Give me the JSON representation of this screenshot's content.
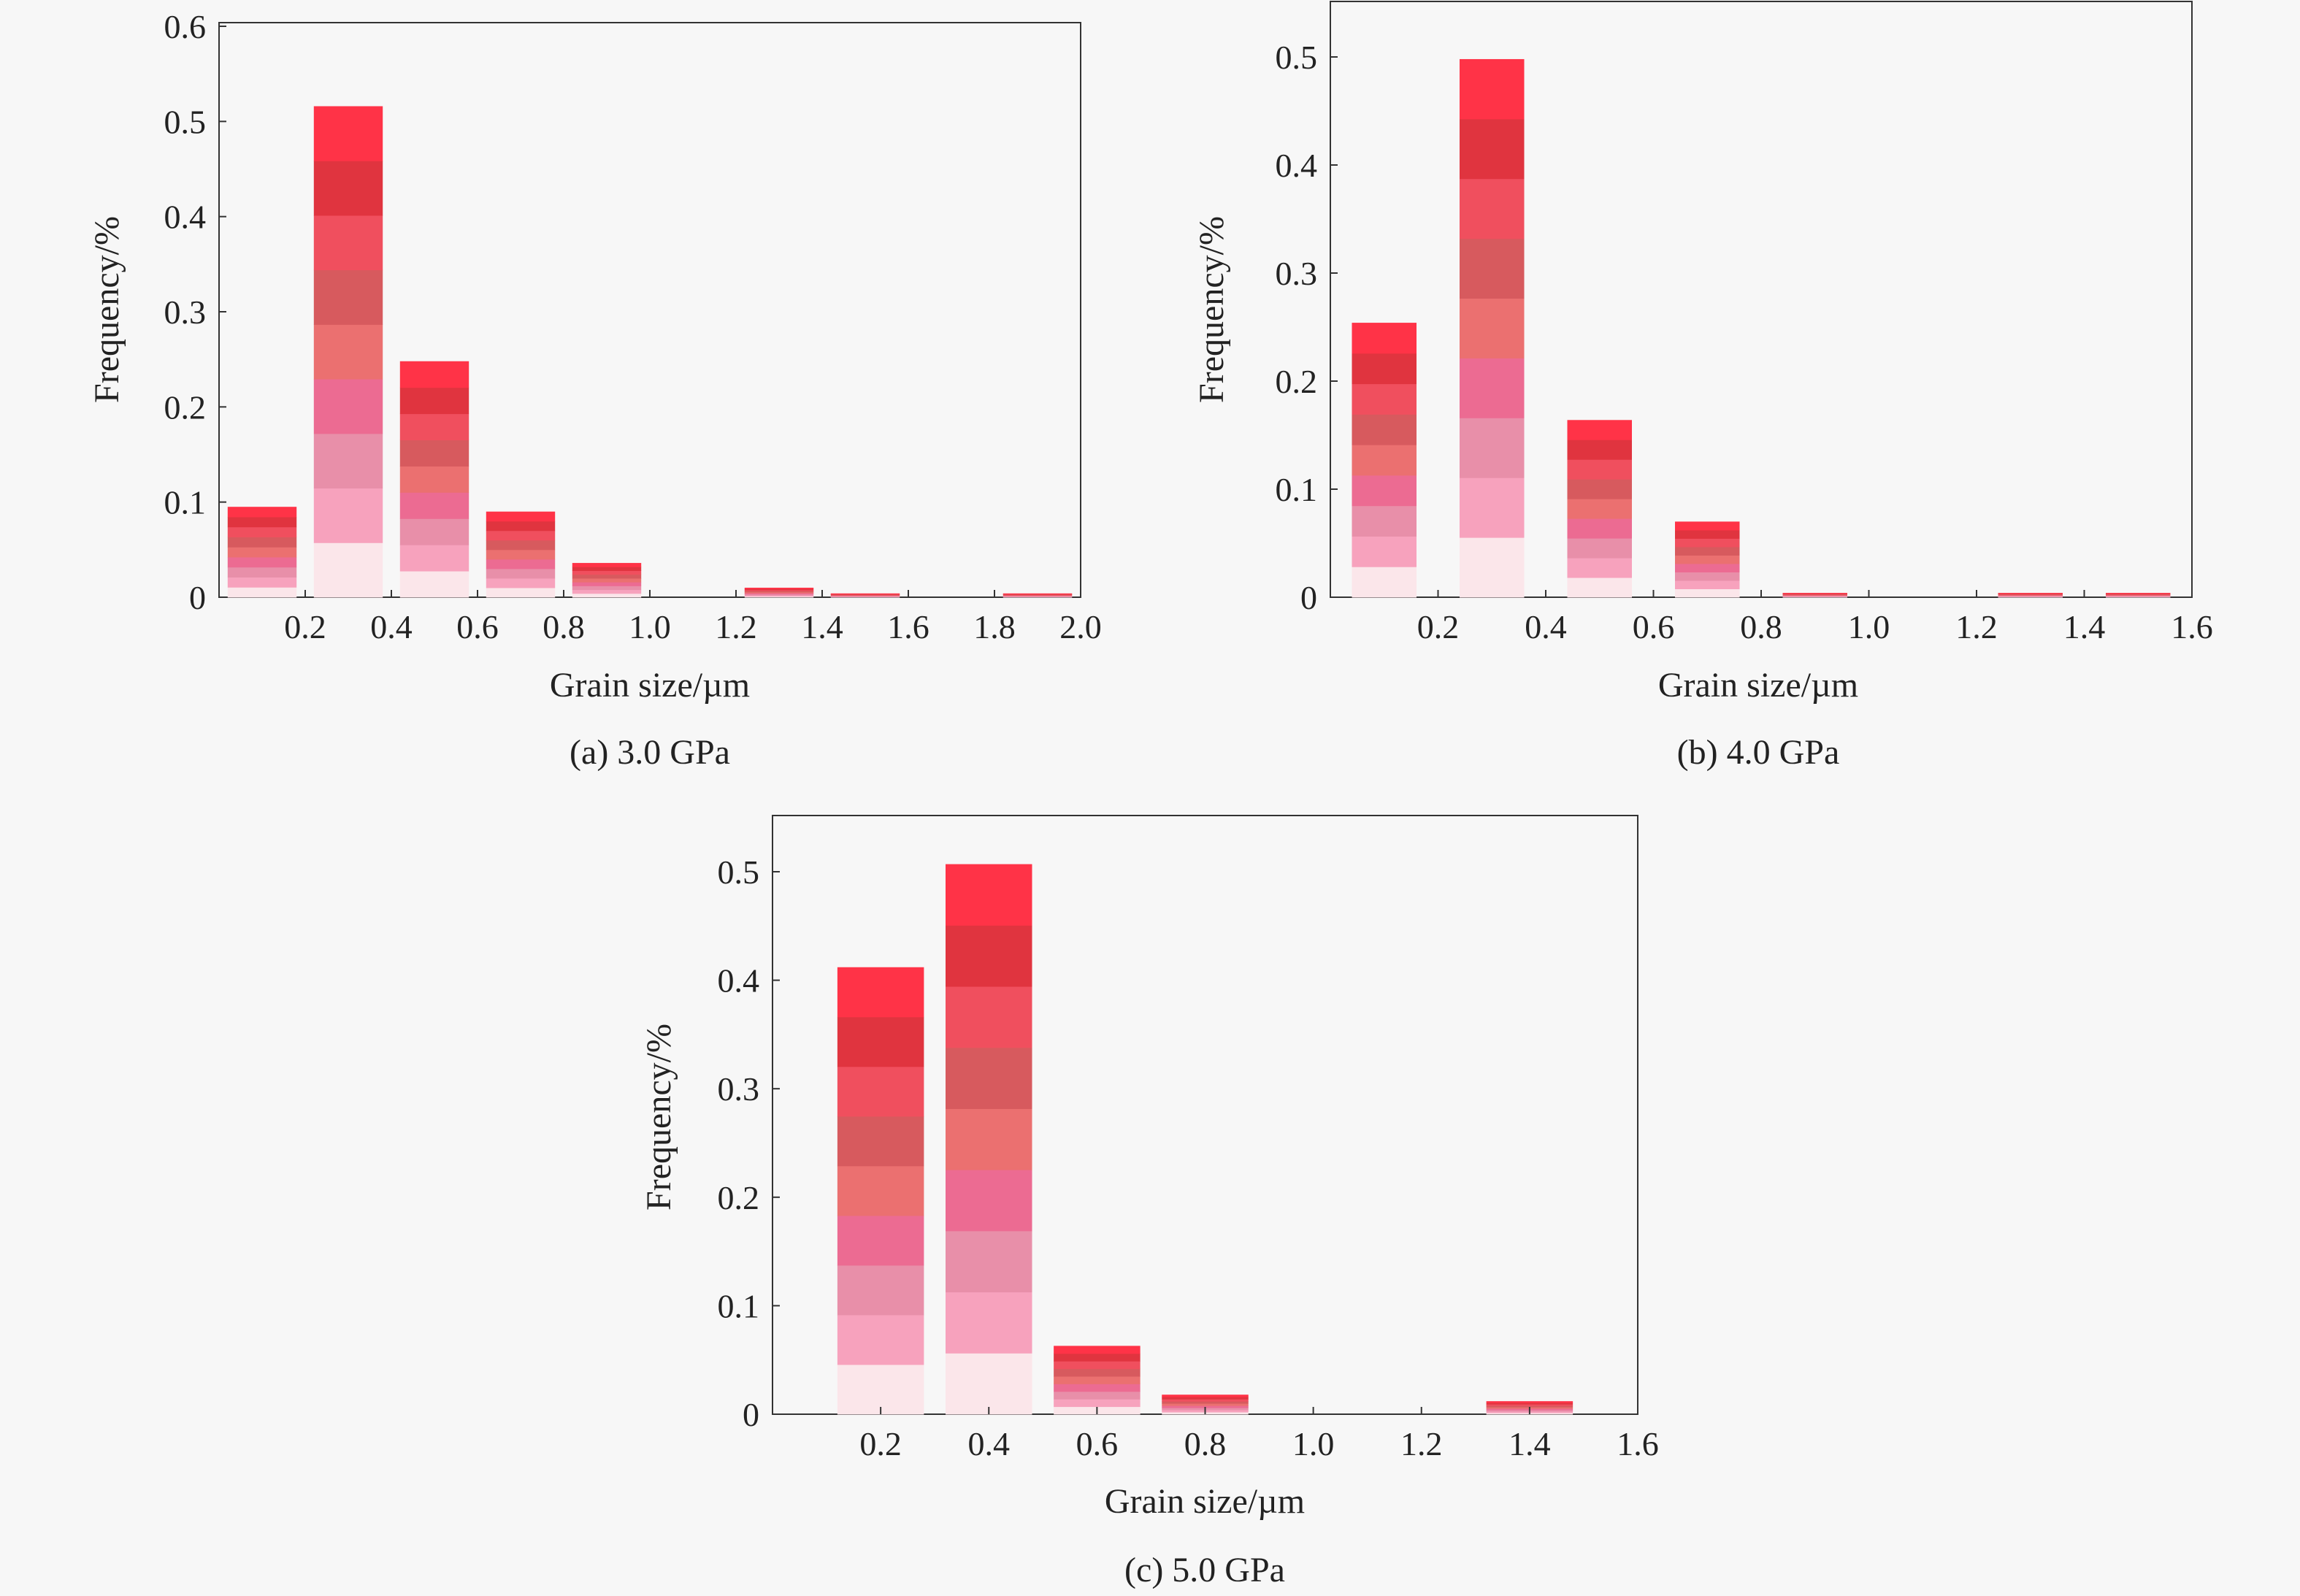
{
  "colors": {
    "background": "#f7f7f7",
    "bar_gradient": [
      "#fbe6ea",
      "#f7a2bd",
      "#e88fa9",
      "#ec6b92",
      "#eb7070",
      "#d75a5e",
      "#f04f5e",
      "#e0343f",
      "#ff3347"
    ]
  },
  "chart_data": [
    {
      "type": "bar",
      "panel": "a",
      "caption": "(a)  3.0 GPa",
      "xlabel": "Grain size/µm",
      "ylabel": "Frequency/%",
      "xlim": [
        0.0,
        2.0
      ],
      "ylim": [
        0,
        0.6
      ],
      "xticks": [
        0.2,
        0.4,
        0.6,
        0.8,
        1.0,
        1.2,
        1.4,
        1.6,
        1.8,
        2.0
      ],
      "xtick_labels": [
        "0.2",
        "0.4",
        "0.6",
        "0.8",
        "1.0",
        "1.2",
        "1.4",
        "1.6",
        "1.8",
        "2.0"
      ],
      "yticks": [
        0,
        0.1,
        0.2,
        0.3,
        0.4,
        0.5,
        0.6
      ],
      "ytick_labels": [
        "0",
        "0.1",
        "0.2",
        "0.3",
        "0.4",
        "0.5",
        "0.6"
      ],
      "categories": [
        "0.1",
        "0.3",
        "0.5",
        "0.7",
        "0.9",
        "1.1",
        "1.3",
        "1.5",
        "1.7",
        "1.9"
      ],
      "bar_centers": [
        0.1,
        0.3,
        0.5,
        0.7,
        0.9,
        1.1,
        1.3,
        1.5,
        1.7,
        1.9
      ],
      "bar_width": 0.16,
      "values": [
        0.095,
        0.516,
        0.248,
        0.09,
        0.036,
        0,
        0.01,
        0.004,
        0,
        0.004
      ]
    },
    {
      "type": "bar",
      "panel": "b",
      "caption": "(b)  4.0 GPa",
      "xlabel": "Grain size/µm",
      "ylabel": "Frequency/%",
      "xlim": [
        0.0,
        1.6
      ],
      "ylim": [
        0,
        0.55
      ],
      "xticks": [
        0.2,
        0.4,
        0.6,
        0.8,
        1.0,
        1.2,
        1.4,
        1.6
      ],
      "xtick_labels": [
        "0.2",
        "0.4",
        "0.6",
        "0.8",
        "1.0",
        "1.2",
        "1.4",
        "1.6"
      ],
      "yticks": [
        0,
        0.1,
        0.2,
        0.3,
        0.4,
        0.5
      ],
      "ytick_labels": [
        "0",
        "0.1",
        "0.2",
        "0.3",
        "0.4",
        "0.5"
      ],
      "categories": [
        "0.1",
        "0.3",
        "0.5",
        "0.7",
        "0.9",
        "1.1",
        "1.3",
        "1.5"
      ],
      "bar_centers": [
        0.1,
        0.3,
        0.5,
        0.7,
        0.9,
        1.1,
        1.3,
        1.5
      ],
      "bar_width": 0.12,
      "values": [
        0.254,
        0.498,
        0.164,
        0.07,
        0.004,
        0,
        0.004,
        0.004
      ]
    },
    {
      "type": "bar",
      "panel": "c",
      "caption": "(c)  5.0 GPa",
      "xlabel": "Grain size/µm",
      "ylabel": "Frequency/%",
      "xlim": [
        0.0,
        1.6
      ],
      "ylim": [
        0,
        0.55
      ],
      "xticks": [
        0.2,
        0.4,
        0.6,
        0.8,
        1.0,
        1.2,
        1.4,
        1.6
      ],
      "xtick_labels": [
        "0.2",
        "0.4",
        "0.6",
        "0.8",
        "1.0",
        "1.2",
        "1.4",
        "1.6"
      ],
      "yticks": [
        0,
        0.1,
        0.2,
        0.3,
        0.4,
        0.5
      ],
      "ytick_labels": [
        "0",
        "0.1",
        "0.2",
        "0.3",
        "0.4",
        "0.5"
      ],
      "categories": [
        "0.2",
        "0.4",
        "0.6",
        "0.8",
        "1.0",
        "1.2",
        "1.4"
      ],
      "bar_centers": [
        0.2,
        0.4,
        0.6,
        0.8,
        1.0,
        1.2,
        1.4
      ],
      "bar_width": 0.16,
      "values": [
        0.412,
        0.507,
        0.063,
        0.018,
        0,
        0,
        0.012
      ]
    }
  ]
}
